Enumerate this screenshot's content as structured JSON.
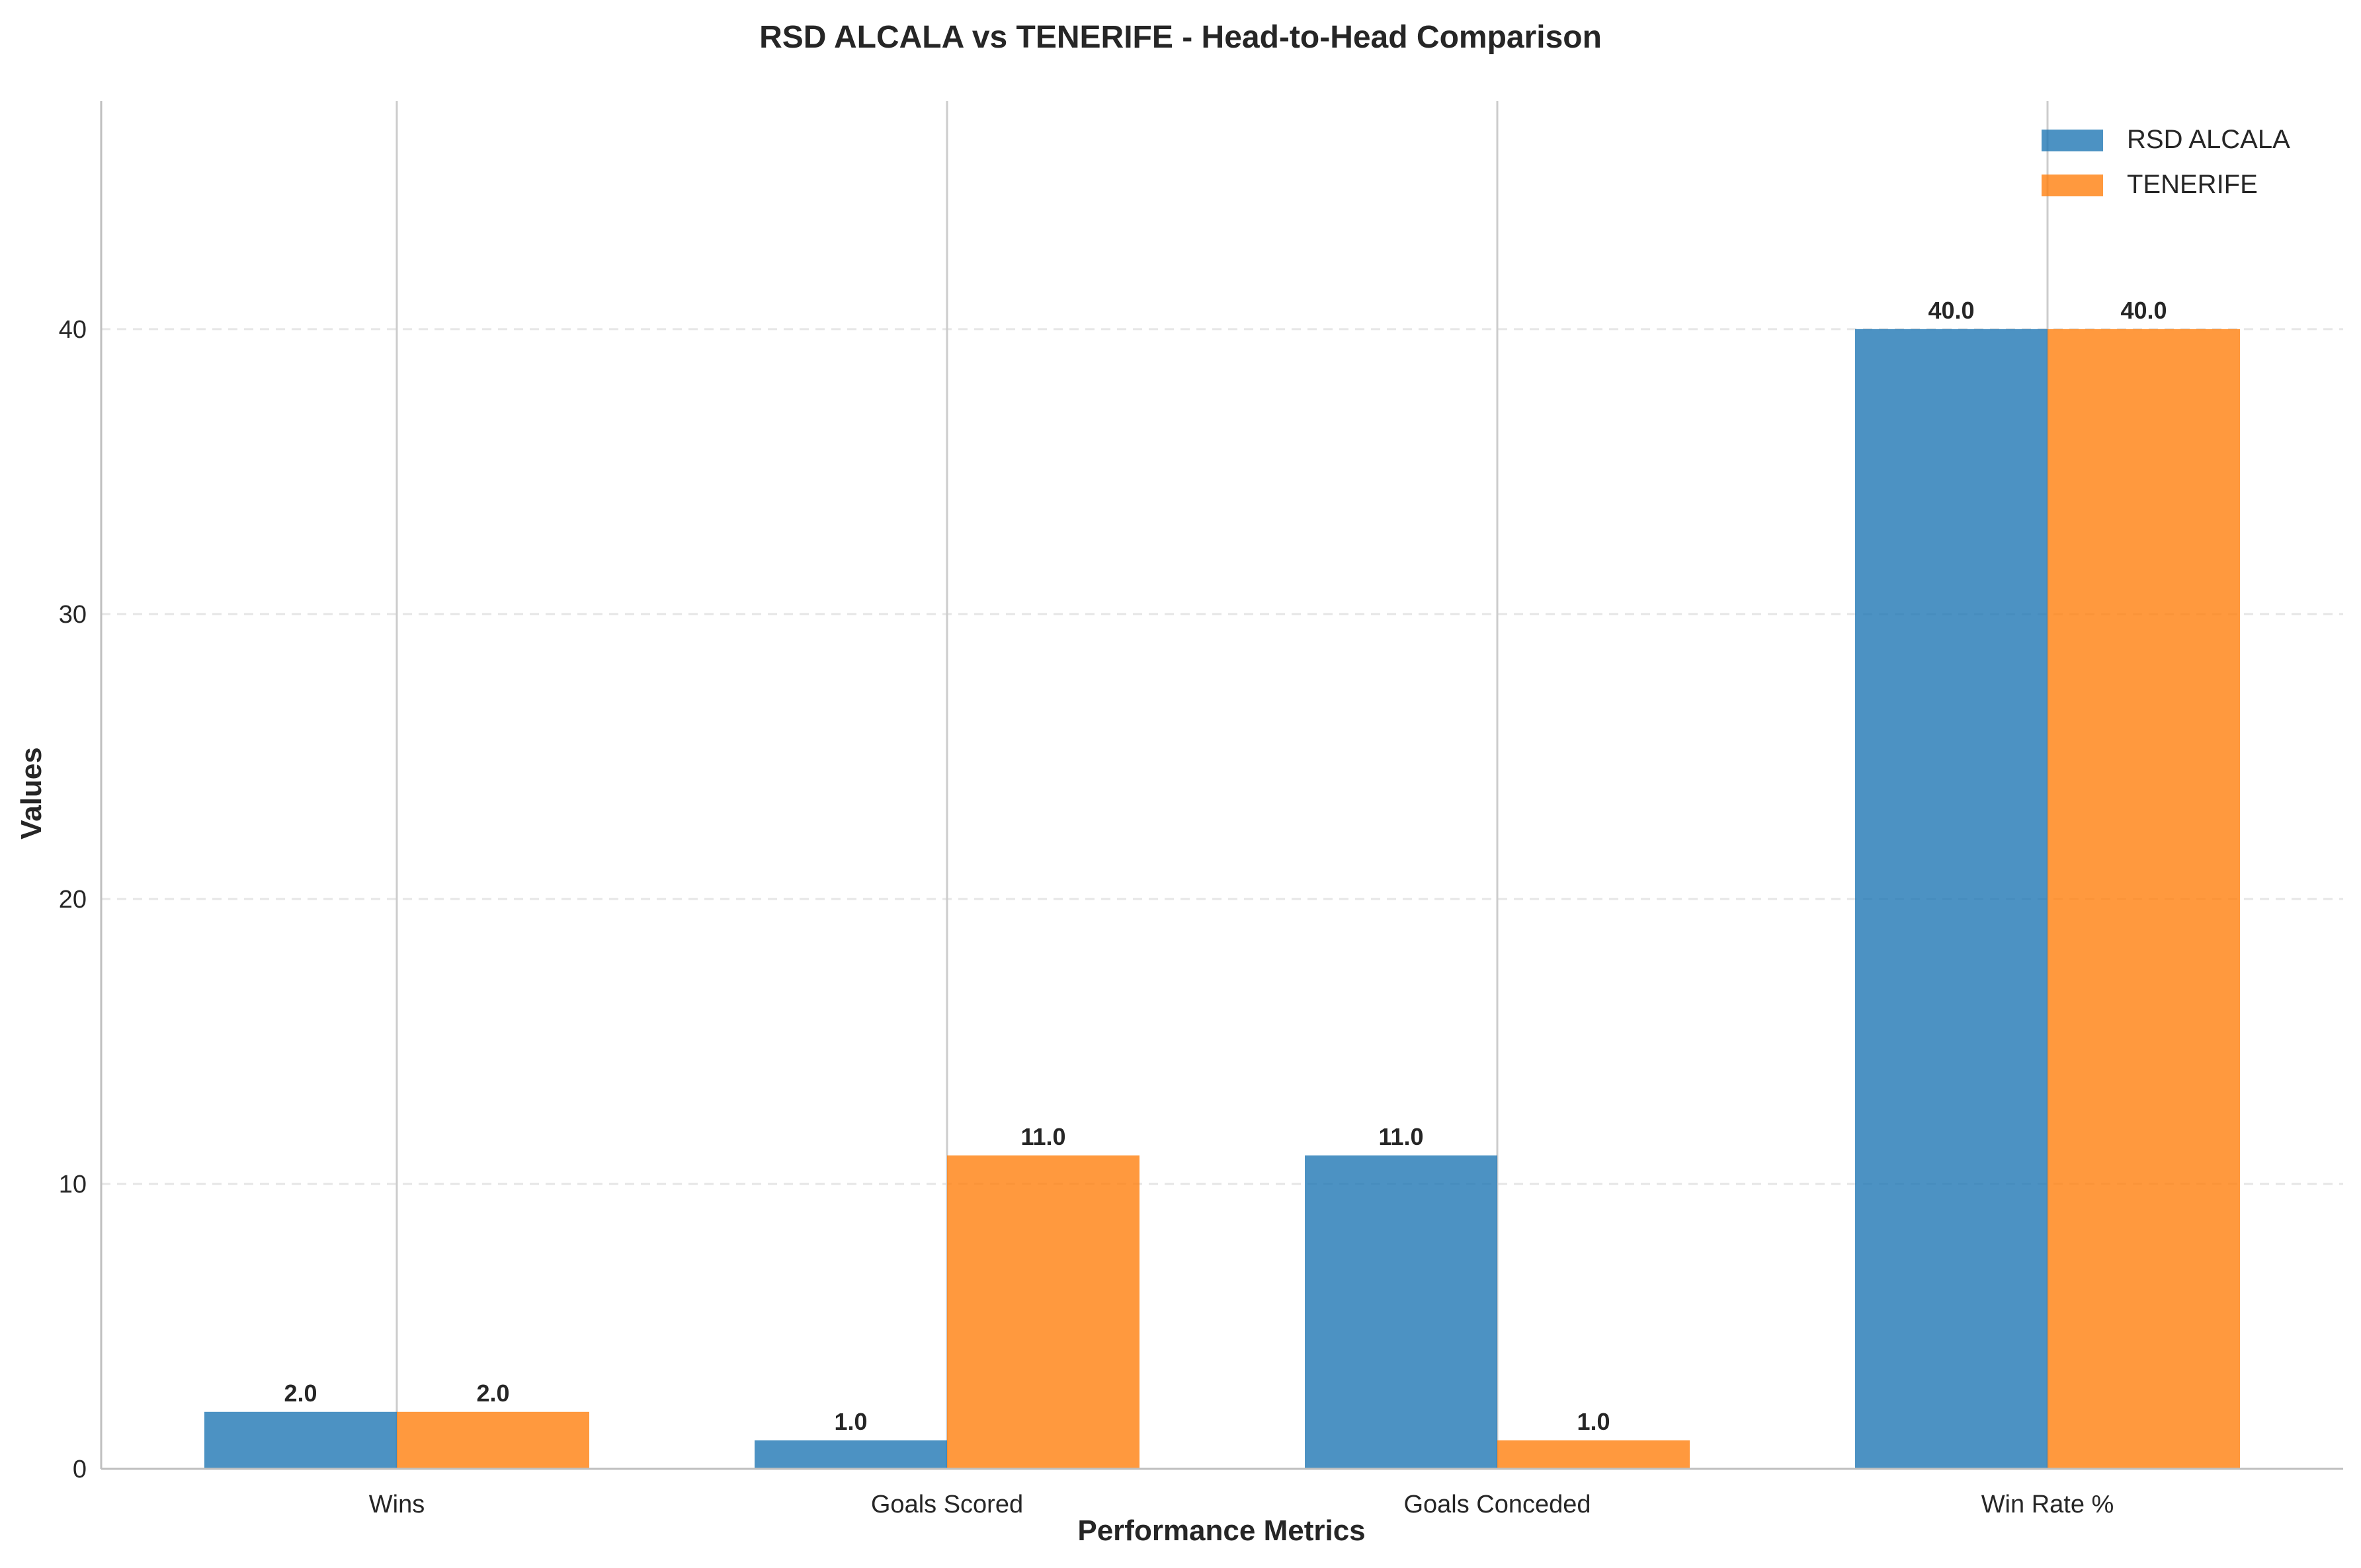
{
  "chart_data": {
    "type": "bar",
    "title": "RSD ALCALA vs TENERIFE - Head-to-Head Comparison",
    "xlabel": "Performance Metrics",
    "ylabel": "Values",
    "categories": [
      "Wins",
      "Goals Scored",
      "Goals Conceded",
      "Win Rate %"
    ],
    "series": [
      {
        "name": "RSD ALCALA",
        "values": [
          2.0,
          1.0,
          11.0,
          40.0
        ],
        "color": "#1f77b4",
        "labels": [
          "2.0",
          "1.0",
          "11.0",
          "40.0"
        ]
      },
      {
        "name": "TENERIFE",
        "values": [
          2.0,
          11.0,
          1.0,
          40.0
        ],
        "color": "#ff7f0e",
        "labels": [
          "2.0",
          "11.0",
          "1.0",
          "40.0"
        ]
      }
    ],
    "ylim": [
      0,
      48
    ],
    "yticks": [
      0,
      10,
      20,
      30,
      40
    ],
    "ytick_labels": [
      "0",
      "10",
      "20",
      "30",
      "40"
    ],
    "grid": "y-dashed",
    "legend": "top-right"
  }
}
